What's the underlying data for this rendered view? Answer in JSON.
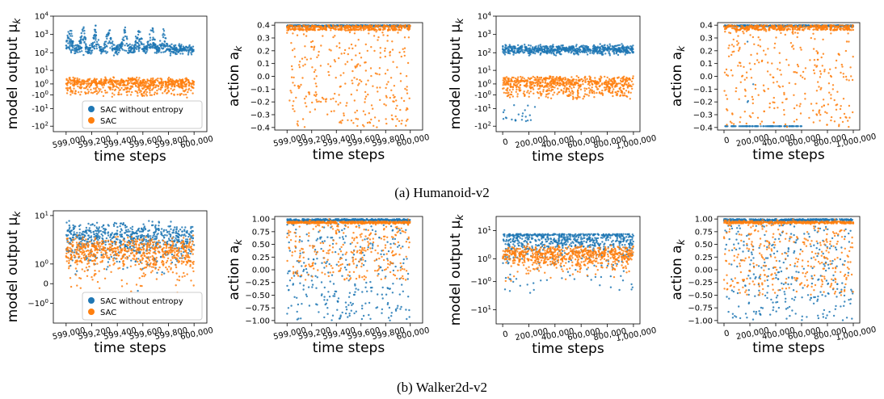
{
  "colors": {
    "no_entropy": "#1f77b4",
    "sac": "#ff7f0e"
  },
  "legend": {
    "no_entropy": "SAC without entropy",
    "sac": "SAC"
  },
  "captions": {
    "a": "(a) Humanoid-v2",
    "b": "(b) Walker2d-v2"
  },
  "chart_data": [
    {
      "type": "scatter",
      "id": "humanoid-output-zoom",
      "ylabel": "model output μ_k",
      "xlabel": "time steps",
      "scale": "symlog",
      "xlim": [
        598900,
        600100
      ],
      "ylim": [
        -200,
        10000
      ],
      "xticks": [
        599000,
        599200,
        599400,
        599600,
        599800,
        600000
      ],
      "xtick_labels": [
        "599,000",
        "599,200",
        "599,400",
        "599,600",
        "599,800",
        "600,000"
      ],
      "yticks": [
        -100,
        -10,
        -1,
        1,
        10,
        100,
        1000,
        10000
      ],
      "ytick_labels": [
        "-10^2",
        "-10^1",
        "-10^0",
        "10^0",
        "10^1",
        "10^2",
        "10^3",
        "10^4"
      ],
      "legend": "lower-left",
      "series": [
        {
          "name": "SAC without entropy",
          "color": "no_entropy",
          "x_range": [
            599000,
            600000
          ],
          "baseline": 150,
          "spread": "spiky-log",
          "spikes": [
            599030,
            599130,
            599230,
            599330,
            599460,
            599570,
            599670,
            599760
          ],
          "peak": 3000
        },
        {
          "name": "SAC",
          "color": "sac",
          "x_range": [
            599000,
            600000
          ],
          "center": 1,
          "spread": "symlog-band",
          "band": [
            -2,
            5
          ]
        }
      ]
    },
    {
      "type": "scatter",
      "id": "humanoid-action-zoom",
      "ylabel": "action a_k",
      "xlabel": "time steps",
      "xlim": [
        598900,
        600100
      ],
      "ylim": [
        -0.42,
        0.42
      ],
      "xticks": [
        599000,
        599200,
        599400,
        599600,
        599800,
        600000
      ],
      "xtick_labels": [
        "599,000",
        "599,200",
        "599,400",
        "599,600",
        "599,800",
        "600,000"
      ],
      "yticks": [
        -0.4,
        -0.3,
        -0.2,
        -0.1,
        0.0,
        0.1,
        0.2,
        0.3,
        0.4
      ],
      "ytick_labels": [
        "−0.4",
        "−0.3",
        "−0.2",
        "−0.1",
        "0.0",
        "0.1",
        "0.2",
        "0.3",
        "0.4"
      ],
      "series": [
        {
          "name": "SAC without entropy",
          "color": "no_entropy",
          "x_range": [
            599000,
            600000
          ],
          "saturated_at": 0.4
        },
        {
          "name": "SAC",
          "color": "sac",
          "x_range": [
            599000,
            600000
          ],
          "dense_near": 0.4,
          "uniform": [
            -0.4,
            0.4
          ]
        }
      ]
    },
    {
      "type": "scatter",
      "id": "humanoid-output-full",
      "ylabel": "model output μ_k",
      "xlabel": "time steps",
      "scale": "symlog",
      "xlim": [
        -50000,
        1050000
      ],
      "ylim": [
        -200,
        10000
      ],
      "xticks": [
        0,
        200000,
        400000,
        600000,
        800000,
        1000000
      ],
      "xtick_labels": [
        "0",
        "200,000",
        "400,000",
        "600,000",
        "800,000",
        "1,000,000"
      ],
      "yticks": [
        -100,
        -10,
        -1,
        1,
        10,
        100,
        1000,
        10000
      ],
      "ytick_labels": [
        "-10^2",
        "-10^1",
        "-10^0",
        "10^0",
        "10^1",
        "10^2",
        "10^3",
        "10^4"
      ],
      "series": [
        {
          "name": "SAC without entropy",
          "color": "no_entropy",
          "x_range": [
            0,
            1000000
          ],
          "baseline": 150,
          "spread": "dense-log",
          "early_negative": [
            -60,
            -5
          ]
        },
        {
          "name": "SAC",
          "color": "sac",
          "x_range": [
            0,
            1000000
          ],
          "center": 1,
          "spread": "symlog-band",
          "band": [
            -3,
            6
          ]
        }
      ]
    },
    {
      "type": "scatter",
      "id": "humanoid-action-full",
      "ylabel": "action a_k",
      "xlabel": "time steps",
      "xlim": [
        -50000,
        1050000
      ],
      "ylim": [
        -0.42,
        0.42
      ],
      "xticks": [
        0,
        200000,
        400000,
        600000,
        800000,
        1000000
      ],
      "xtick_labels": [
        "0",
        "200,000",
        "400,000",
        "600,000",
        "800,000",
        "1,000,000"
      ],
      "yticks": [
        -0.4,
        -0.3,
        -0.2,
        -0.1,
        0.0,
        0.1,
        0.2,
        0.3,
        0.4
      ],
      "ytick_labels": [
        "−0.4",
        "−0.3",
        "−0.2",
        "−0.1",
        "0.0",
        "0.1",
        "0.2",
        "0.3",
        "0.4"
      ],
      "series": [
        {
          "name": "SAC without entropy",
          "color": "no_entropy",
          "x_range": [
            0,
            1000000
          ],
          "saturated_at": 0.4,
          "low_band_until": 600000
        },
        {
          "name": "SAC",
          "color": "sac",
          "x_range": [
            0,
            1000000
          ],
          "dense_near": 0.4,
          "uniform": [
            -0.4,
            0.4
          ]
        }
      ]
    },
    {
      "type": "scatter",
      "id": "walker-output-zoom",
      "ylabel": "model output μ_k",
      "xlabel": "time steps",
      "scale": "symlog",
      "xlim": [
        598900,
        600100
      ],
      "ylim": [
        -3,
        12
      ],
      "xticks": [
        599000,
        599200,
        599400,
        599600,
        599800,
        600000
      ],
      "xtick_labels": [
        "599,000",
        "599,200",
        "599,400",
        "599,600",
        "599,800",
        "600,000"
      ],
      "yticks": [
        -1,
        0,
        1,
        10
      ],
      "ytick_labels": [
        "−10^0",
        "0",
        "10^0",
        "10^1"
      ],
      "legend": "lower-left",
      "series": [
        {
          "name": "SAC without entropy",
          "color": "no_entropy",
          "x_range": [
            599000,
            600000
          ],
          "center": 4,
          "band": [
            -2,
            9
          ]
        },
        {
          "name": "SAC",
          "color": "sac",
          "x_range": [
            599000,
            600000
          ],
          "center": 2,
          "band": [
            -0.5,
            6
          ]
        }
      ]
    },
    {
      "type": "scatter",
      "id": "walker-action-zoom",
      "ylabel": "action a_k",
      "xlabel": "time steps",
      "xlim": [
        598900,
        600100
      ],
      "ylim": [
        -1.05,
        1.05
      ],
      "xticks": [
        599000,
        599200,
        599400,
        599600,
        599800,
        600000
      ],
      "xtick_labels": [
        "599,000",
        "599,200",
        "599,400",
        "599,600",
        "599,800",
        "600,000"
      ],
      "yticks": [
        -1.0,
        -0.75,
        -0.5,
        -0.25,
        0.0,
        0.25,
        0.5,
        0.75,
        1.0
      ],
      "ytick_labels": [
        "−1.00",
        "−0.75",
        "−0.50",
        "−0.25",
        "0.00",
        "0.25",
        "0.50",
        "0.75",
        "1.00"
      ],
      "series": [
        {
          "name": "SAC without entropy",
          "color": "no_entropy",
          "x_range": [
            599000,
            600000
          ],
          "dense_near": 1.0,
          "uniform": [
            -1.0,
            1.0
          ]
        },
        {
          "name": "SAC",
          "color": "sac",
          "x_range": [
            599000,
            600000
          ],
          "dense_near": 0.95,
          "uniform": [
            -0.2,
            1.0
          ]
        }
      ]
    },
    {
      "type": "scatter",
      "id": "walker-output-full",
      "ylabel": "model output μ_k",
      "xlabel": "time steps",
      "scale": "symlog",
      "xlim": [
        -50000,
        1050000
      ],
      "ylim": [
        -25,
        25
      ],
      "xticks": [
        0,
        200000,
        400000,
        600000,
        800000,
        1000000
      ],
      "xtick_labels": [
        "0",
        "200,000",
        "400,000",
        "600,000",
        "800,000",
        "1,000,000"
      ],
      "yticks": [
        -10,
        -1,
        1,
        10
      ],
      "ytick_labels": [
        "−10^1",
        "−10^0",
        "10^0",
        "10^1"
      ],
      "series": [
        {
          "name": "SAC without entropy",
          "color": "no_entropy",
          "x_range": [
            0,
            1000000
          ],
          "center": 5,
          "band": [
            -12,
            8
          ]
        },
        {
          "name": "SAC",
          "color": "sac",
          "x_range": [
            0,
            1000000
          ],
          "center": 1.5,
          "band": [
            -1,
            5
          ]
        }
      ]
    },
    {
      "type": "scatter",
      "id": "walker-action-full",
      "ylabel": "action a_k",
      "xlabel": "time steps",
      "xlim": [
        -50000,
        1050000
      ],
      "ylim": [
        -1.05,
        1.05
      ],
      "xticks": [
        0,
        200000,
        400000,
        600000,
        800000,
        1000000
      ],
      "xtick_labels": [
        "0",
        "200,000",
        "400,000",
        "600,000",
        "800,000",
        "1,000,000"
      ],
      "yticks": [
        -1.0,
        -0.75,
        -0.5,
        -0.25,
        0.0,
        0.25,
        0.5,
        0.75,
        1.0
      ],
      "ytick_labels": [
        "−1.00",
        "−0.75",
        "−0.50",
        "−0.25",
        "0.00",
        "0.25",
        "0.50",
        "0.75",
        "1.00"
      ],
      "series": [
        {
          "name": "SAC without entropy",
          "color": "no_entropy",
          "x_range": [
            0,
            1000000
          ],
          "dense_near": 1.0,
          "uniform": [
            -1.0,
            1.0
          ]
        },
        {
          "name": "SAC",
          "color": "sac",
          "x_range": [
            0,
            1000000
          ],
          "dense_near": 0.95,
          "uniform": [
            -0.5,
            1.0
          ]
        }
      ]
    }
  ]
}
